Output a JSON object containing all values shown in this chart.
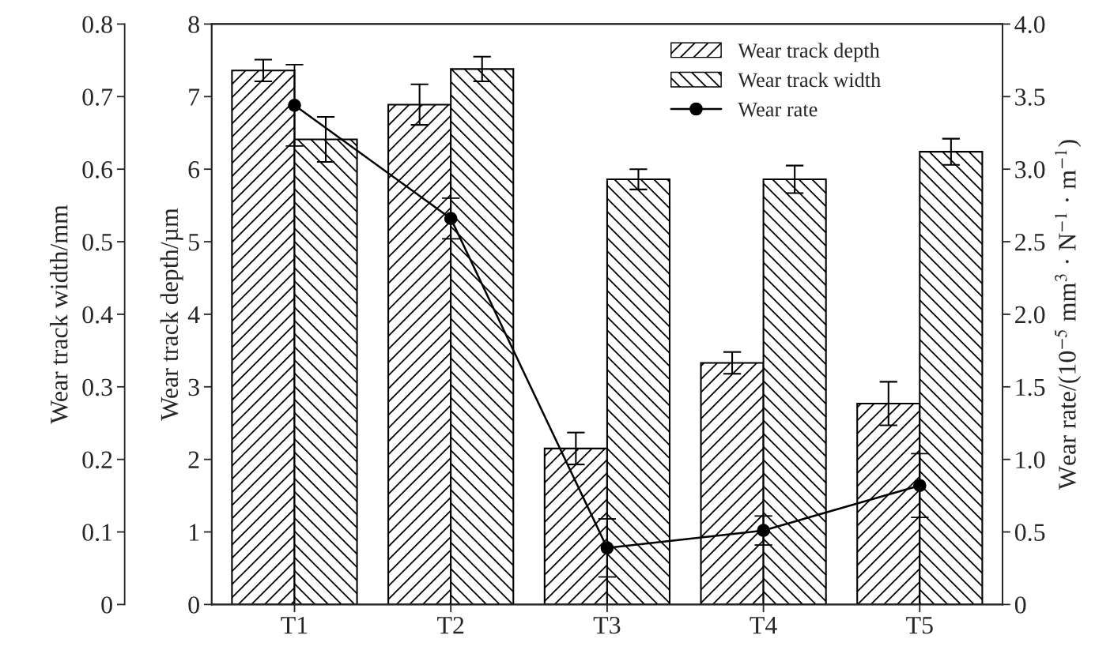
{
  "chart_data": {
    "type": "bar",
    "categories": [
      "T1",
      "T2",
      "T3",
      "T4",
      "T5"
    ],
    "ylabel": "Wear track depth/µm",
    "y3label": "Wear track width/mm",
    "y2label": "Wear rate/(10$^{−5}$ mm$^{3}$ · N$^{−1}$ · m$^{−1}$)",
    "ylim": [
      0,
      8
    ],
    "yticks": [
      0,
      1,
      2,
      3,
      4,
      5,
      6,
      7,
      8
    ],
    "y3lim": [
      0,
      0.8
    ],
    "y3ticks": [
      0,
      0.1,
      0.2,
      0.3,
      0.4,
      0.5,
      0.6,
      0.7,
      0.8
    ],
    "y2lim": [
      0,
      4
    ],
    "y2ticks": [
      0,
      0.5,
      {
        "value": 1,
        "label": "1.0"
      },
      1.5,
      {
        "value": 2,
        "label": "2.0"
      },
      2.5,
      {
        "value": 3,
        "label": "3.0"
      },
      3.5,
      {
        "value": 4,
        "label": "4.0"
      }
    ],
    "series": [
      {
        "name": "Wear track depth",
        "type": "bar",
        "axis": "y",
        "color": "#000000",
        "values": [
          7.36,
          6.89,
          2.15,
          3.33,
          2.77
        ],
        "errors": [
          0.15,
          0.28,
          0.22,
          0.15,
          0.3
        ]
      },
      {
        "name": "Wear track width",
        "type": "bar",
        "axis": "y3",
        "color": "#000000",
        "values": [
          0.641,
          0.738,
          0.586,
          0.586,
          0.624
        ],
        "errors": [
          0.031,
          0.017,
          0.014,
          0.019,
          0.018
        ]
      },
      {
        "name": "Wear rate",
        "type": "line",
        "axis": "y2",
        "color": "#000000",
        "marker": "circle",
        "line_style": "solid",
        "values": [
          3.44,
          2.66,
          0.39,
          0.51,
          0.82
        ],
        "errors": [
          0.28,
          0.14,
          0.2,
          0.1,
          0.22
        ]
      }
    ],
    "legend": "top right",
    "grid": false
  }
}
